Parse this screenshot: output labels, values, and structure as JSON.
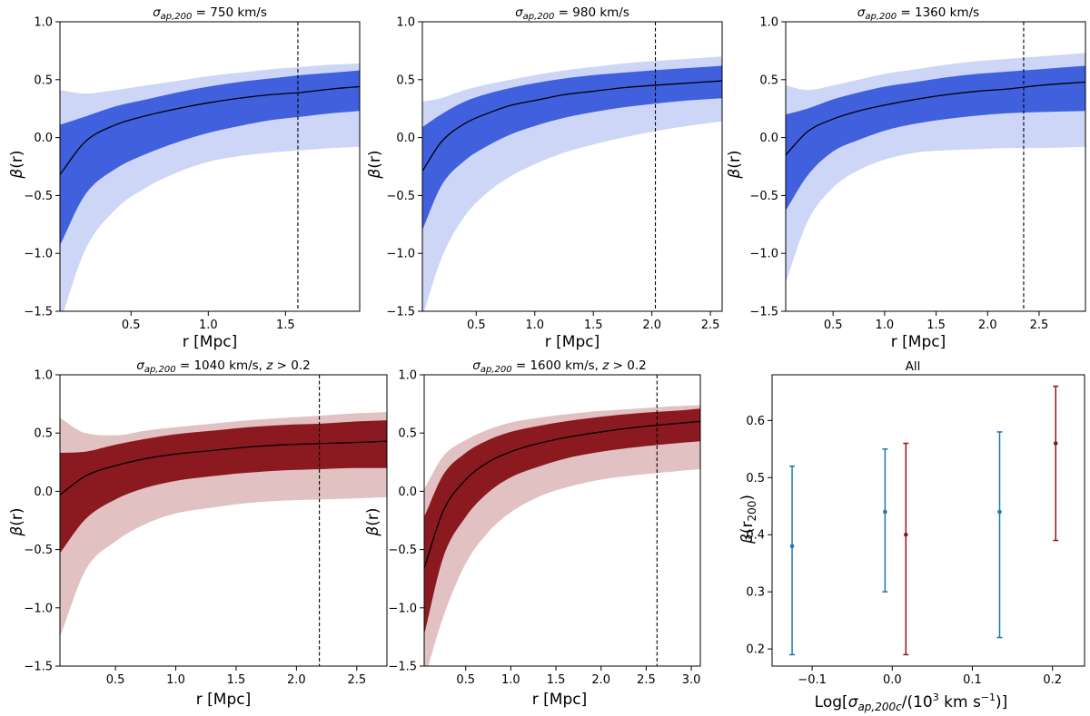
{
  "figure": {
    "panels": [
      {
        "id": "p1",
        "title_sym": "σ",
        "title_sub": "ap,200",
        "title_rest": " = 750 km/s",
        "xlabel": "r [Mpc]",
        "ylabel_sym": "β",
        "ylabel_rest": "(r)"
      },
      {
        "id": "p2",
        "title_sym": "σ",
        "title_sub": "ap,200",
        "title_rest": " = 980 km/s",
        "xlabel": "r [Mpc]",
        "ylabel_sym": "β",
        "ylabel_rest": "(r)"
      },
      {
        "id": "p3",
        "title_sym": "σ",
        "title_sub": "ap,200",
        "title_rest": " = 1360 km/s",
        "xlabel": "r [Mpc]",
        "ylabel_sym": "β",
        "ylabel_rest": "(r)"
      },
      {
        "id": "p4",
        "title_sym": "σ",
        "title_sub": "ap,200",
        "title_rest": " = 1040 km/s, ",
        "title_z": "z",
        "title_zrest": " > 0.2",
        "xlabel": "r [Mpc]",
        "ylabel_sym": "β",
        "ylabel_rest": "(r)"
      },
      {
        "id": "p5",
        "title_sym": "σ",
        "title_sub": "ap,200",
        "title_rest": " = 1600 km/s, ",
        "title_z": "z",
        "title_zrest": " > 0.2",
        "xlabel": "r [Mpc]",
        "ylabel_sym": "β",
        "ylabel_rest": "(r)"
      },
      {
        "id": "p6",
        "title": "All",
        "xlabel_a": "Log[",
        "xlabel_sym": "σ",
        "xlabel_sub": "ap,200c",
        "xlabel_b": "/(10",
        "xlabel_sup": "3",
        "xlabel_c": " km s",
        "xlabel_sup2": "−1",
        "xlabel_d": ")]",
        "ylabel_sym": "β",
        "ylabel_a": "(r",
        "ylabel_sub": "200",
        "ylabel_b": ")"
      }
    ]
  },
  "colors": {
    "blue_dark": "#4060dd",
    "blue_light": "#cdd6f6",
    "red_dark": "#8b1a20",
    "red_light": "#e1c1c2",
    "errbar_blue": "#1f77b4",
    "errbar_red": "#8b1a1a",
    "line": "#000000",
    "axes": "#000000"
  },
  "chart_data": [
    {
      "type": "area",
      "title": "σ_ap,200 = 750 km/s",
      "xlabel": "r [Mpc]",
      "ylabel": "β(r)",
      "xlim": [
        0.04,
        1.98
      ],
      "ylim": [
        -1.5,
        1.0
      ],
      "xticks": [
        0.5,
        1.0,
        1.5
      ],
      "yticks": [
        -1.5,
        -1.0,
        -0.5,
        0.0,
        0.5,
        1.0
      ],
      "x": [
        0.04,
        0.2,
        0.4,
        0.6,
        0.8,
        1.0,
        1.2,
        1.4,
        1.6,
        1.8,
        1.98
      ],
      "median": [
        -0.32,
        -0.04,
        0.11,
        0.19,
        0.25,
        0.3,
        0.34,
        0.37,
        0.39,
        0.42,
        0.44
      ],
      "band_1sigma_low": [
        -0.93,
        -0.5,
        -0.27,
        -0.14,
        -0.04,
        0.04,
        0.1,
        0.15,
        0.18,
        0.21,
        0.23
      ],
      "band_1sigma_high": [
        0.11,
        0.18,
        0.27,
        0.33,
        0.39,
        0.44,
        0.48,
        0.51,
        0.54,
        0.56,
        0.58
      ],
      "band_2sigma_low": [
        -1.6,
        -0.98,
        -0.62,
        -0.43,
        -0.3,
        -0.21,
        -0.16,
        -0.13,
        -0.11,
        -0.09,
        -0.08
      ],
      "band_2sigma_high": [
        0.41,
        0.38,
        0.41,
        0.45,
        0.49,
        0.53,
        0.56,
        0.59,
        0.61,
        0.63,
        0.64
      ],
      "vline_x": 1.58
    },
    {
      "type": "area",
      "title": "σ_ap,200 = 980 km/s",
      "xlabel": "r [Mpc]",
      "ylabel": "β(r)",
      "xlim": [
        0.04,
        2.6
      ],
      "ylim": [
        -1.5,
        1.0
      ],
      "xticks": [
        0.5,
        1.0,
        1.5,
        2.0,
        2.5
      ],
      "yticks": [
        -1.5,
        -1.0,
        -0.5,
        0.0,
        0.5,
        1.0
      ],
      "x": [
        0.04,
        0.2,
        0.4,
        0.6,
        0.8,
        1.0,
        1.25,
        1.5,
        1.75,
        2.0,
        2.3,
        2.6
      ],
      "median": [
        -0.29,
        -0.04,
        0.12,
        0.21,
        0.28,
        0.32,
        0.37,
        0.4,
        0.43,
        0.45,
        0.47,
        0.49
      ],
      "band_1sigma_low": [
        -0.8,
        -0.42,
        -0.2,
        -0.07,
        0.03,
        0.1,
        0.17,
        0.22,
        0.26,
        0.29,
        0.32,
        0.34
      ],
      "band_1sigma_high": [
        0.09,
        0.2,
        0.31,
        0.38,
        0.43,
        0.47,
        0.51,
        0.54,
        0.56,
        0.58,
        0.6,
        0.62
      ],
      "band_2sigma_low": [
        -1.55,
        -1.05,
        -0.68,
        -0.47,
        -0.33,
        -0.23,
        -0.13,
        -0.06,
        0.0,
        0.05,
        0.1,
        0.14
      ],
      "band_2sigma_high": [
        0.31,
        0.34,
        0.41,
        0.46,
        0.5,
        0.54,
        0.58,
        0.61,
        0.64,
        0.66,
        0.68,
        0.7
      ],
      "vline_x": 2.03
    },
    {
      "type": "area",
      "title": "σ_ap,200 = 1360 km/s",
      "xlabel": "r [Mpc]",
      "ylabel": "β(r)",
      "xlim": [
        0.04,
        2.95
      ],
      "ylim": [
        -1.5,
        1.0
      ],
      "xticks": [
        0.5,
        1.0,
        1.5,
        2.0,
        2.5
      ],
      "yticks": [
        -1.5,
        -1.0,
        -0.5,
        0.0,
        0.5,
        1.0
      ],
      "x": [
        0.04,
        0.25,
        0.5,
        0.75,
        1.0,
        1.3,
        1.6,
        1.9,
        2.2,
        2.5,
        2.95
      ],
      "median": [
        -0.15,
        0.05,
        0.16,
        0.23,
        0.28,
        0.33,
        0.37,
        0.4,
        0.42,
        0.45,
        0.48
      ],
      "band_1sigma_low": [
        -0.63,
        -0.33,
        -0.12,
        -0.02,
        0.06,
        0.12,
        0.16,
        0.19,
        0.21,
        0.22,
        0.23
      ],
      "band_1sigma_high": [
        0.2,
        0.25,
        0.33,
        0.39,
        0.44,
        0.48,
        0.52,
        0.55,
        0.57,
        0.59,
        0.62
      ],
      "band_2sigma_low": [
        -1.25,
        -0.73,
        -0.43,
        -0.28,
        -0.19,
        -0.13,
        -0.11,
        -0.1,
        -0.09,
        -0.09,
        -0.08
      ],
      "band_2sigma_high": [
        0.45,
        0.41,
        0.45,
        0.5,
        0.55,
        0.59,
        0.63,
        0.66,
        0.68,
        0.7,
        0.73
      ],
      "vline_x": 2.35
    },
    {
      "type": "area",
      "title": "σ_ap,200 = 1040 km/s, z > 0.2",
      "xlabel": "r [Mpc]",
      "ylabel": "β(r)",
      "xlim": [
        0.04,
        2.75
      ],
      "ylim": [
        -1.5,
        1.0
      ],
      "xticks": [
        0.5,
        1.0,
        1.5,
        2.0,
        2.5
      ],
      "yticks": [
        -1.5,
        -1.0,
        -0.5,
        0.0,
        0.5,
        1.0
      ],
      "x": [
        0.04,
        0.25,
        0.5,
        0.75,
        1.0,
        1.3,
        1.6,
        1.9,
        2.2,
        2.5,
        2.75
      ],
      "median": [
        -0.03,
        0.13,
        0.22,
        0.28,
        0.32,
        0.35,
        0.38,
        0.4,
        0.41,
        0.42,
        0.43
      ],
      "band_1sigma_low": [
        -0.53,
        -0.24,
        -0.07,
        0.03,
        0.09,
        0.13,
        0.16,
        0.18,
        0.19,
        0.2,
        0.2
      ],
      "band_1sigma_high": [
        0.33,
        0.34,
        0.4,
        0.45,
        0.49,
        0.52,
        0.55,
        0.57,
        0.58,
        0.6,
        0.61
      ],
      "band_2sigma_low": [
        -1.25,
        -0.68,
        -0.43,
        -0.28,
        -0.19,
        -0.14,
        -0.1,
        -0.08,
        -0.07,
        -0.06,
        -0.05
      ],
      "band_2sigma_high": [
        0.63,
        0.5,
        0.48,
        0.52,
        0.55,
        0.58,
        0.61,
        0.63,
        0.65,
        0.67,
        0.68
      ],
      "vline_x": 2.19
    },
    {
      "type": "area",
      "title": "σ_ap,200 = 1600 km/s, z > 0.2",
      "xlabel": "r [Mpc]",
      "ylabel": "β(r)",
      "xlim": [
        0.04,
        3.1
      ],
      "ylim": [
        -1.5,
        1.0
      ],
      "xticks": [
        0.5,
        1.0,
        1.5,
        2.0,
        2.5,
        3.0
      ],
      "yticks": [
        -1.5,
        -1.0,
        -0.5,
        0.0,
        0.5,
        1.0
      ],
      "x": [
        0.04,
        0.25,
        0.5,
        0.75,
        1.0,
        1.3,
        1.6,
        2.0,
        2.4,
        2.8,
        3.1
      ],
      "median": [
        -0.66,
        -0.17,
        0.1,
        0.25,
        0.34,
        0.41,
        0.46,
        0.51,
        0.55,
        0.58,
        0.6
      ],
      "band_1sigma_low": [
        -1.23,
        -0.57,
        -0.22,
        -0.01,
        0.12,
        0.21,
        0.28,
        0.34,
        0.38,
        0.41,
        0.43
      ],
      "band_1sigma_high": [
        -0.22,
        0.14,
        0.33,
        0.44,
        0.51,
        0.56,
        0.6,
        0.64,
        0.67,
        0.69,
        0.71
      ],
      "band_2sigma_low": [
        -1.62,
        -1.08,
        -0.62,
        -0.35,
        -0.18,
        -0.05,
        0.03,
        0.1,
        0.14,
        0.17,
        0.19
      ],
      "band_2sigma_high": [
        0.02,
        0.3,
        0.44,
        0.53,
        0.59,
        0.63,
        0.66,
        0.69,
        0.71,
        0.73,
        0.74
      ],
      "vline_x": 2.62
    },
    {
      "type": "scatter",
      "title": "All",
      "xlabel": "Log[σ_ap,200c/(10^3 km s^-1)]",
      "ylabel": "β(r_200)",
      "xlim": [
        -0.15,
        0.24
      ],
      "ylim": [
        0.17,
        0.68
      ],
      "xticks": [
        -0.1,
        0.0,
        0.1,
        0.2
      ],
      "yticks": [
        0.2,
        0.3,
        0.4,
        0.5,
        0.6
      ],
      "series": [
        {
          "name": "blue",
          "points": [
            {
              "x": -0.125,
              "y": 0.38,
              "ylow": 0.19,
              "yhigh": 0.52
            },
            {
              "x": -0.009,
              "y": 0.44,
              "ylow": 0.3,
              "yhigh": 0.55
            },
            {
              "x": 0.134,
              "y": 0.44,
              "ylow": 0.22,
              "yhigh": 0.58
            }
          ]
        },
        {
          "name": "red",
          "points": [
            {
              "x": 0.017,
              "y": 0.4,
              "ylow": 0.19,
              "yhigh": 0.56
            },
            {
              "x": 0.204,
              "y": 0.56,
              "ylow": 0.39,
              "yhigh": 0.66
            }
          ]
        }
      ]
    }
  ]
}
